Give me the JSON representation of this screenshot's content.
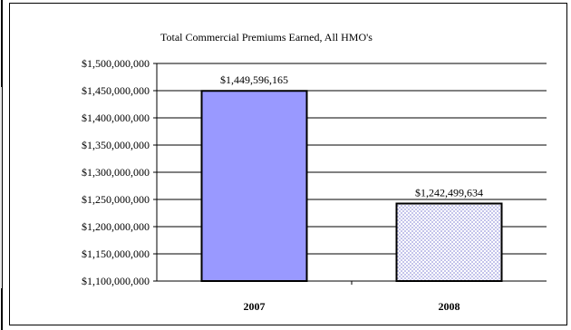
{
  "chart_data": {
    "type": "bar",
    "title": "Total Commercial Premiums Earned, All HMO's",
    "categories": [
      "2007",
      "2008"
    ],
    "values": [
      1449596165,
      1242499634
    ],
    "data_labels": [
      "$1,449,596,165",
      "$1,242,499,634"
    ],
    "xlabel": "",
    "ylabel": "",
    "ylim": [
      1100000000,
      1500000000
    ],
    "y_ticks": [
      {
        "value": 1100000000,
        "label": "$1,100,000,000"
      },
      {
        "value": 1150000000,
        "label": "$1,150,000,000"
      },
      {
        "value": 1200000000,
        "label": "$1,200,000,000"
      },
      {
        "value": 1250000000,
        "label": "$1,250,000,000"
      },
      {
        "value": 1300000000,
        "label": "$1,300,000,000"
      },
      {
        "value": 1350000000,
        "label": "$1,350,000,000"
      },
      {
        "value": 1400000000,
        "label": "$1,400,000,000"
      },
      {
        "value": 1450000000,
        "label": "$1,450,000,000"
      },
      {
        "value": 1500000000,
        "label": "$1,500,000,000"
      }
    ],
    "grid": true,
    "legend": "none",
    "bar_colors": [
      "#9999ff",
      "#ccccff"
    ],
    "bar_fills": [
      "solid",
      "dotted"
    ]
  }
}
